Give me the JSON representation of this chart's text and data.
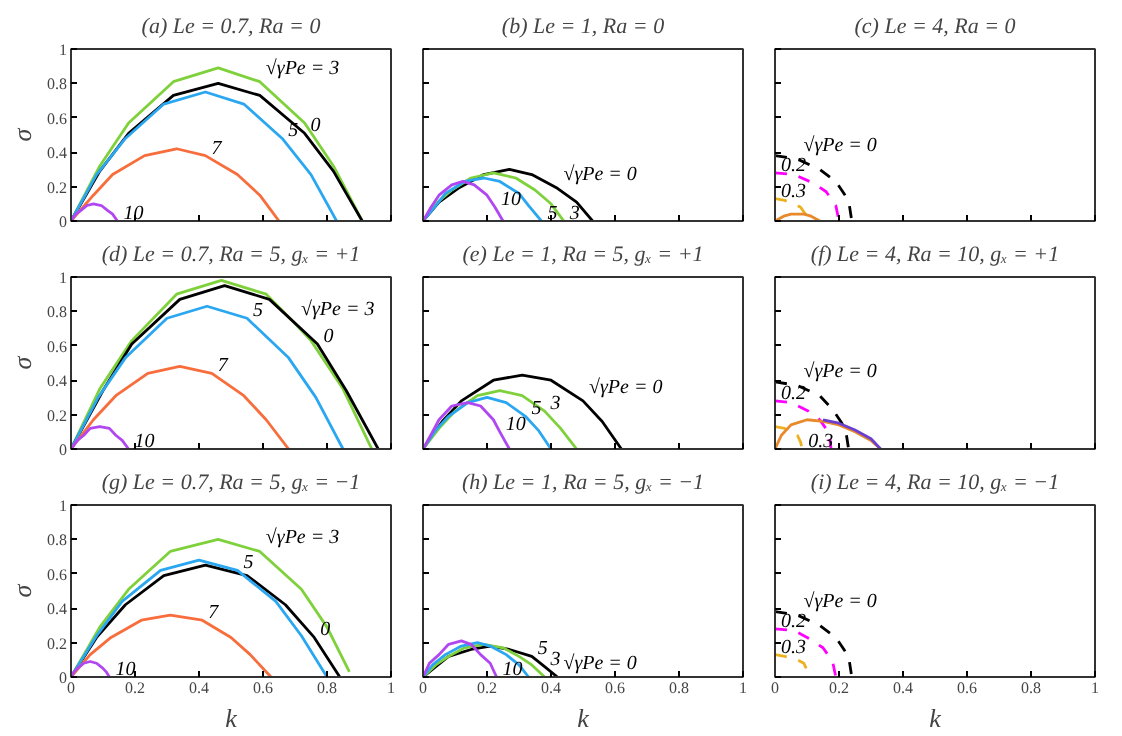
{
  "chart_data": [
    {
      "type": "line",
      "title": "(a) Le = 0.7, Ra = 0",
      "ylabel": "σ",
      "xlim": [
        0,
        1
      ],
      "ylim": [
        0,
        1
      ],
      "xticks": [
        0,
        0.2,
        0.4,
        0.6,
        0.8,
        1
      ],
      "yticks": [
        0,
        0.2,
        0.4,
        0.6,
        0.8,
        1
      ],
      "grid": false,
      "tick_labels": "y",
      "series": [
        {
          "color": "#7fd13b",
          "x": [
            0,
            0.09,
            0.18,
            0.32,
            0.46,
            0.59,
            0.73,
            0.82,
            0.91
          ],
          "values": [
            0,
            0.32,
            0.57,
            0.81,
            0.89,
            0.81,
            0.57,
            0.32,
            0
          ]
        },
        {
          "color": "#000000",
          "x": [
            0,
            0.09,
            0.18,
            0.32,
            0.46,
            0.59,
            0.73,
            0.82,
            0.91
          ],
          "values": [
            0,
            0.29,
            0.51,
            0.73,
            0.8,
            0.73,
            0.51,
            0.29,
            0
          ]
        },
        {
          "color": "#2aa7f0",
          "x": [
            0,
            0.08,
            0.17,
            0.29,
            0.42,
            0.54,
            0.66,
            0.75,
            0.83
          ],
          "values": [
            0,
            0.27,
            0.48,
            0.68,
            0.75,
            0.68,
            0.48,
            0.27,
            0
          ]
        },
        {
          "color": "#f76d3c",
          "x": [
            0,
            0.07,
            0.13,
            0.23,
            0.33,
            0.42,
            0.52,
            0.59,
            0.65
          ],
          "values": [
            0,
            0.15,
            0.27,
            0.38,
            0.42,
            0.38,
            0.27,
            0.15,
            0
          ]
        },
        {
          "color": "#b147f0",
          "x": [
            0,
            0.015,
            0.03,
            0.05,
            0.07,
            0.095,
            0.115,
            0.13,
            0.145
          ],
          "values": [
            0,
            0.04,
            0.06,
            0.09,
            0.1,
            0.09,
            0.06,
            0.04,
            0
          ]
        }
      ],
      "annotations": [
        {
          "text": "√γPe = 3",
          "x": 0.59,
          "y": 0.81
        },
        {
          "text": "0",
          "x": 0.73,
          "y": 0.51
        },
        {
          "text": "5",
          "x": 0.66,
          "y": 0.48
        },
        {
          "text": "7",
          "x": 0.42,
          "y": 0.38
        },
        {
          "text": "10",
          "x": 0.145,
          "y": 0
        }
      ]
    },
    {
      "type": "line",
      "title": "(b) Le = 1, Ra = 0",
      "xlim": [
        0,
        1
      ],
      "ylim": [
        0,
        1
      ],
      "xticks": [
        0,
        0.2,
        0.4,
        0.6,
        0.8,
        1
      ],
      "yticks": [
        0,
        0.2,
        0.4,
        0.6,
        0.8,
        1
      ],
      "grid": false,
      "tick_labels": false,
      "series": [
        {
          "color": "#000000",
          "x": [
            0,
            0.05,
            0.11,
            0.19,
            0.27,
            0.34,
            0.42,
            0.48,
            0.53
          ],
          "values": [
            0,
            0.11,
            0.19,
            0.27,
            0.3,
            0.27,
            0.19,
            0.11,
            0
          ]
        },
        {
          "color": "#7fd13b",
          "x": [
            0,
            0.04,
            0.09,
            0.15,
            0.22,
            0.29,
            0.35,
            0.4,
            0.44
          ],
          "values": [
            0,
            0.1,
            0.18,
            0.25,
            0.28,
            0.25,
            0.18,
            0.1,
            0
          ]
        },
        {
          "color": "#2aa7f0",
          "x": [
            0,
            0.04,
            0.07,
            0.13,
            0.19,
            0.24,
            0.3,
            0.33,
            0.37
          ],
          "values": [
            0,
            0.09,
            0.16,
            0.23,
            0.25,
            0.23,
            0.16,
            0.09,
            0
          ]
        },
        {
          "color": "#b147f0",
          "x": [
            0,
            0.025,
            0.05,
            0.09,
            0.125,
            0.16,
            0.2,
            0.225,
            0.25
          ],
          "values": [
            0,
            0.08,
            0.15,
            0.21,
            0.23,
            0.21,
            0.15,
            0.08,
            0
          ]
        }
      ],
      "annotations": [
        {
          "text": "√γPe = 0",
          "x": 0.42,
          "y": 0.19
        },
        {
          "text": "3",
          "x": 0.44,
          "y": 0
        },
        {
          "text": "5",
          "x": 0.37,
          "y": 0
        },
        {
          "text": "10",
          "x": 0.225,
          "y": 0.08
        }
      ]
    },
    {
      "type": "line",
      "title": "(c) Le = 4, Ra = 0",
      "xlim": [
        0,
        1
      ],
      "ylim": [
        0,
        1
      ],
      "xticks": [
        0,
        0.2,
        0.4,
        0.6,
        0.8,
        1
      ],
      "yticks": [
        0,
        0.2,
        0.4,
        0.6,
        0.8,
        1
      ],
      "grid": false,
      "tick_labels": false,
      "series": [
        {
          "color": "#000000",
          "line_style": "dashed",
          "x": [
            0,
            0.07,
            0.14,
            0.19,
            0.23,
            0.24
          ],
          "values": [
            0.38,
            0.36,
            0.3,
            0.23,
            0.12,
            0
          ]
        },
        {
          "color": "#ff00ff",
          "line_style": "dashed",
          "x": [
            0,
            0.06,
            0.12,
            0.16,
            0.19,
            0.2
          ],
          "values": [
            0.28,
            0.27,
            0.22,
            0.17,
            0.09,
            0
          ]
        },
        {
          "color": "#edb120",
          "line_style": "dashed",
          "x": [
            0,
            0.03,
            0.06,
            0.08,
            0.095,
            0.1
          ],
          "values": [
            0.13,
            0.12,
            0.1,
            0.08,
            0.04,
            0
          ]
        },
        {
          "color": "#e8892a",
          "x": [
            0,
            0.01,
            0.03,
            0.05,
            0.07,
            0.09,
            0.11,
            0.13,
            0.14
          ],
          "values": [
            0,
            0.01,
            0.03,
            0.04,
            0.04,
            0.04,
            0.03,
            0.01,
            0
          ]
        }
      ],
      "annotations": [
        {
          "text": "√γPe = 0",
          "x": 0.07,
          "y": 0.36
        },
        {
          "text": "0.2",
          "x": 0,
          "y": 0.28
        },
        {
          "text": "0.3",
          "x": 0,
          "y": 0.13
        }
      ]
    },
    {
      "type": "line",
      "title": "(d) Le = 0.7, Ra = 5, gₓ = +1",
      "ylabel": "σ",
      "xlim": [
        0,
        1
      ],
      "ylim": [
        0,
        1
      ],
      "xticks": [
        0,
        0.2,
        0.4,
        0.6,
        0.8,
        1
      ],
      "yticks": [
        0,
        0.2,
        0.4,
        0.6,
        0.8,
        1
      ],
      "grid": false,
      "tick_labels": "y",
      "series": [
        {
          "color": "#7fd13b",
          "x": [
            0,
            0.09,
            0.19,
            0.33,
            0.47,
            0.61,
            0.7,
            0.75,
            0.85,
            0.94
          ],
          "values": [
            0,
            0.35,
            0.63,
            0.9,
            0.98,
            0.9,
            0.73,
            0.63,
            0.35,
            0
          ]
        },
        {
          "color": "#000000",
          "x": [
            0,
            0.1,
            0.19,
            0.34,
            0.48,
            0.62,
            0.77,
            0.86,
            0.96
          ],
          "values": [
            0,
            0.34,
            0.61,
            0.87,
            0.95,
            0.87,
            0.61,
            0.34,
            0
          ]
        },
        {
          "color": "#2aa7f0",
          "x": [
            0,
            0.085,
            0.17,
            0.3,
            0.425,
            0.55,
            0.68,
            0.765,
            0.85
          ],
          "values": [
            0,
            0.3,
            0.53,
            0.76,
            0.83,
            0.76,
            0.53,
            0.3,
            0
          ]
        },
        {
          "color": "#f76d3c",
          "x": [
            0,
            0.07,
            0.14,
            0.24,
            0.34,
            0.44,
            0.54,
            0.61,
            0.68
          ],
          "values": [
            0,
            0.17,
            0.31,
            0.44,
            0.48,
            0.44,
            0.31,
            0.17,
            0
          ]
        },
        {
          "color": "#b147f0",
          "x": [
            0,
            0.02,
            0.04,
            0.06,
            0.09,
            0.12,
            0.14,
            0.16,
            0.18
          ],
          "values": [
            0,
            0.05,
            0.08,
            0.12,
            0.13,
            0.12,
            0.08,
            0.05,
            0
          ]
        }
      ],
      "annotations": [
        {
          "text": "√γPe = 3",
          "x": 0.7,
          "y": 0.73
        },
        {
          "text": "0",
          "x": 0.77,
          "y": 0.61
        },
        {
          "text": "5",
          "x": 0.55,
          "y": 0.76
        },
        {
          "text": "7",
          "x": 0.44,
          "y": 0.44
        },
        {
          "text": "10",
          "x": 0.18,
          "y": 0
        }
      ]
    },
    {
      "type": "line",
      "title": "(e) Le = 1, Ra = 5, gₓ = +1",
      "xlim": [
        0,
        1
      ],
      "ylim": [
        0,
        1
      ],
      "xticks": [
        0,
        0.2,
        0.4,
        0.6,
        0.8,
        1
      ],
      "yticks": [
        0,
        0.2,
        0.4,
        0.6,
        0.8,
        1
      ],
      "grid": false,
      "tick_labels": false,
      "series": [
        {
          "color": "#000000",
          "x": [
            0,
            0.06,
            0.12,
            0.22,
            0.31,
            0.4,
            0.5,
            0.56,
            0.62
          ],
          "values": [
            0,
            0.16,
            0.28,
            0.4,
            0.43,
            0.4,
            0.28,
            0.16,
            0
          ]
        },
        {
          "color": "#7fd13b",
          "x": [
            0,
            0.05,
            0.1,
            0.17,
            0.24,
            0.31,
            0.38,
            0.43,
            0.48
          ],
          "values": [
            0,
            0.12,
            0.22,
            0.31,
            0.34,
            0.31,
            0.22,
            0.12,
            0
          ]
        },
        {
          "color": "#2aa7f0",
          "x": [
            0,
            0.04,
            0.08,
            0.14,
            0.2,
            0.26,
            0.32,
            0.36,
            0.4
          ],
          "values": [
            0,
            0.11,
            0.19,
            0.27,
            0.3,
            0.27,
            0.19,
            0.11,
            0
          ]
        },
        {
          "color": "#b147f0",
          "x": [
            0,
            0.03,
            0.05,
            0.09,
            0.14,
            0.18,
            0.22,
            0.24,
            0.27
          ],
          "values": [
            0,
            0.1,
            0.17,
            0.25,
            0.27,
            0.25,
            0.17,
            0.1,
            0
          ]
        }
      ],
      "annotations": [
        {
          "text": "√γPe = 0",
          "x": 0.5,
          "y": 0.28
        },
        {
          "text": "3",
          "x": 0.38,
          "y": 0.22
        },
        {
          "text": "5",
          "x": 0.32,
          "y": 0.19
        },
        {
          "text": "10",
          "x": 0.24,
          "y": 0.1
        }
      ]
    },
    {
      "type": "line",
      "title": "(f) Le = 4, Ra = 10, gₓ = +1",
      "xlim": [
        0,
        1
      ],
      "ylim": [
        0,
        1
      ],
      "xticks": [
        0,
        0.2,
        0.4,
        0.6,
        0.8,
        1
      ],
      "yticks": [
        0,
        0.2,
        0.4,
        0.6,
        0.8,
        1
      ],
      "grid": false,
      "tick_labels": false,
      "series": [
        {
          "color": "#000000",
          "line_style": "dashed",
          "x": [
            0,
            0.07,
            0.14,
            0.18,
            0.22,
            0.23
          ],
          "values": [
            0.39,
            0.37,
            0.31,
            0.23,
            0.12,
            0
          ]
        },
        {
          "color": "#ff00ff",
          "line_style": "dashed",
          "x": [
            0,
            0.05,
            0.105,
            0.14,
            0.17,
            0.175
          ],
          "values": [
            0.28,
            0.27,
            0.22,
            0.17,
            0.09,
            0
          ]
        },
        {
          "color": "#edb120",
          "line_style": "dashed",
          "x": [
            0,
            0.03,
            0.05,
            0.07,
            0.08,
            0.085
          ],
          "values": [
            0.13,
            0.12,
            0.1,
            0.08,
            0.04,
            0
          ]
        },
        {
          "color": "#e8892a",
          "x": [
            0,
            0.02,
            0.05,
            0.1,
            0.15,
            0.2,
            0.25,
            0.3,
            0.33
          ],
          "values": [
            0,
            0.08,
            0.14,
            0.17,
            0.16,
            0.14,
            0.1,
            0.05,
            0
          ]
        },
        {
          "color": "#6a3fd0",
          "x": [
            0.15,
            0.2,
            0.25,
            0.3,
            0.33
          ],
          "values": [
            0.17,
            0.15,
            0.11,
            0.06,
            0
          ]
        }
      ],
      "annotations": [
        {
          "text": "√γPe = 0",
          "x": 0.07,
          "y": 0.37
        },
        {
          "text": "0.2",
          "x": 0,
          "y": 0.28
        },
        {
          "text": "0.3",
          "x": 0.085,
          "y": 0
        }
      ]
    },
    {
      "type": "line",
      "title": "(g) Le = 0.7, Ra = 5, gₓ = −1",
      "xlabel": "k",
      "ylabel": "σ",
      "xlim": [
        0,
        1
      ],
      "ylim": [
        0,
        1
      ],
      "xticks": [
        0,
        0.2,
        0.4,
        0.6,
        0.8,
        1
      ],
      "yticks": [
        0,
        0.2,
        0.4,
        0.6,
        0.8,
        1
      ],
      "grid": false,
      "series": [
        {
          "color": "#7fd13b",
          "x": [
            0,
            0.09,
            0.18,
            0.31,
            0.46,
            0.59,
            0.72,
            0.8,
            0.87
          ],
          "values": [
            0,
            0.29,
            0.51,
            0.73,
            0.8,
            0.73,
            0.51,
            0.29,
            0.03
          ]
        },
        {
          "color": "#000000",
          "x": [
            0,
            0.08,
            0.17,
            0.29,
            0.42,
            0.55,
            0.67,
            0.76,
            0.84
          ],
          "values": [
            0,
            0.23,
            0.42,
            0.59,
            0.65,
            0.59,
            0.42,
            0.23,
            0
          ]
        },
        {
          "color": "#2aa7f0",
          "x": [
            0,
            0.08,
            0.16,
            0.28,
            0.4,
            0.52,
            0.64,
            0.72,
            0.8
          ],
          "values": [
            0,
            0.24,
            0.44,
            0.62,
            0.68,
            0.62,
            0.44,
            0.24,
            0
          ]
        },
        {
          "color": "#f76d3c",
          "x": [
            0,
            0.06,
            0.125,
            0.22,
            0.31,
            0.41,
            0.5,
            0.56,
            0.625
          ],
          "values": [
            0,
            0.13,
            0.23,
            0.33,
            0.36,
            0.33,
            0.23,
            0.13,
            0
          ]
        },
        {
          "color": "#b147f0",
          "x": [
            0,
            0.01,
            0.02,
            0.04,
            0.06,
            0.08,
            0.1,
            0.11,
            0.12
          ],
          "values": [
            0,
            0.03,
            0.05,
            0.08,
            0.09,
            0.08,
            0.05,
            0.03,
            0
          ]
        }
      ],
      "annotations": [
        {
          "text": "√γPe = 3",
          "x": 0.59,
          "y": 0.73
        },
        {
          "text": "0",
          "x": 0.76,
          "y": 0.23
        },
        {
          "text": "5",
          "x": 0.52,
          "y": 0.62
        },
        {
          "text": "7",
          "x": 0.41,
          "y": 0.33
        },
        {
          "text": "10",
          "x": 0.12,
          "y": 0
        }
      ]
    },
    {
      "type": "line",
      "title": "(h) Le = 1, Ra = 5, gₓ = −1",
      "xlabel": "k",
      "xlim": [
        0,
        1
      ],
      "ylim": [
        0,
        1
      ],
      "xticks": [
        0,
        0.2,
        0.4,
        0.6,
        0.8,
        1
      ],
      "yticks": [
        0,
        0.2,
        0.4,
        0.6,
        0.8,
        1
      ],
      "grid": false,
      "tick_labels": "x",
      "series": [
        {
          "color": "#000000",
          "x": [
            0,
            0.04,
            0.08,
            0.15,
            0.21,
            0.27,
            0.34,
            0.38,
            0.42
          ],
          "values": [
            0,
            0.06,
            0.12,
            0.16,
            0.18,
            0.16,
            0.12,
            0.06,
            0
          ]
        },
        {
          "color": "#7fd13b",
          "x": [
            0,
            0.04,
            0.08,
            0.13,
            0.19,
            0.25,
            0.3,
            0.34,
            0.38
          ],
          "values": [
            0,
            0.07,
            0.12,
            0.17,
            0.19,
            0.17,
            0.12,
            0.07,
            0
          ]
        },
        {
          "color": "#2aa7f0",
          "x": [
            0,
            0.03,
            0.07,
            0.12,
            0.17,
            0.21,
            0.26,
            0.3,
            0.33
          ],
          "values": [
            0,
            0.07,
            0.13,
            0.18,
            0.2,
            0.18,
            0.13,
            0.07,
            0
          ]
        },
        {
          "color": "#b147f0",
          "x": [
            0,
            0.02,
            0.05,
            0.08,
            0.12,
            0.15,
            0.18,
            0.21,
            0.23
          ],
          "values": [
            0,
            0.08,
            0.13,
            0.19,
            0.21,
            0.19,
            0.13,
            0.08,
            0
          ]
        }
      ],
      "annotations": [
        {
          "text": "√γPe = 0",
          "x": 0.42,
          "y": 0
        },
        {
          "text": "3",
          "x": 0.38,
          "y": 0.06
        },
        {
          "text": "5",
          "x": 0.34,
          "y": 0.12
        },
        {
          "text": "10",
          "x": 0.23,
          "y": 0
        }
      ]
    },
    {
      "type": "line",
      "title": "(i) Le = 4, Ra = 10, gₓ = −1",
      "xlabel": "k",
      "xlim": [
        0,
        1
      ],
      "ylim": [
        0,
        1
      ],
      "xticks": [
        0,
        0.2,
        0.4,
        0.6,
        0.8,
        1
      ],
      "yticks": [
        0,
        0.2,
        0.4,
        0.6,
        0.8,
        1
      ],
      "grid": false,
      "tick_labels": "x",
      "series": [
        {
          "color": "#000000",
          "line_style": "dashed",
          "x": [
            0,
            0.07,
            0.14,
            0.19,
            0.23,
            0.24
          ],
          "values": [
            0.38,
            0.36,
            0.3,
            0.23,
            0.12,
            0
          ]
        },
        {
          "color": "#ff00ff",
          "line_style": "dashed",
          "x": [
            0,
            0.06,
            0.11,
            0.15,
            0.18,
            0.19
          ],
          "values": [
            0.28,
            0.27,
            0.22,
            0.17,
            0.09,
            0
          ]
        },
        {
          "color": "#edb120",
          "line_style": "dashed",
          "x": [
            0,
            0.03,
            0.07,
            0.09,
            0.1,
            0.11
          ],
          "values": [
            0.13,
            0.12,
            0.1,
            0.08,
            0.04,
            0
          ]
        }
      ],
      "annotations": [
        {
          "text": "√γPe = 0",
          "x": 0.07,
          "y": 0.36
        },
        {
          "text": "0.2",
          "x": 0,
          "y": 0.28
        },
        {
          "text": "0.3",
          "x": 0,
          "y": 0.13
        }
      ]
    }
  ]
}
